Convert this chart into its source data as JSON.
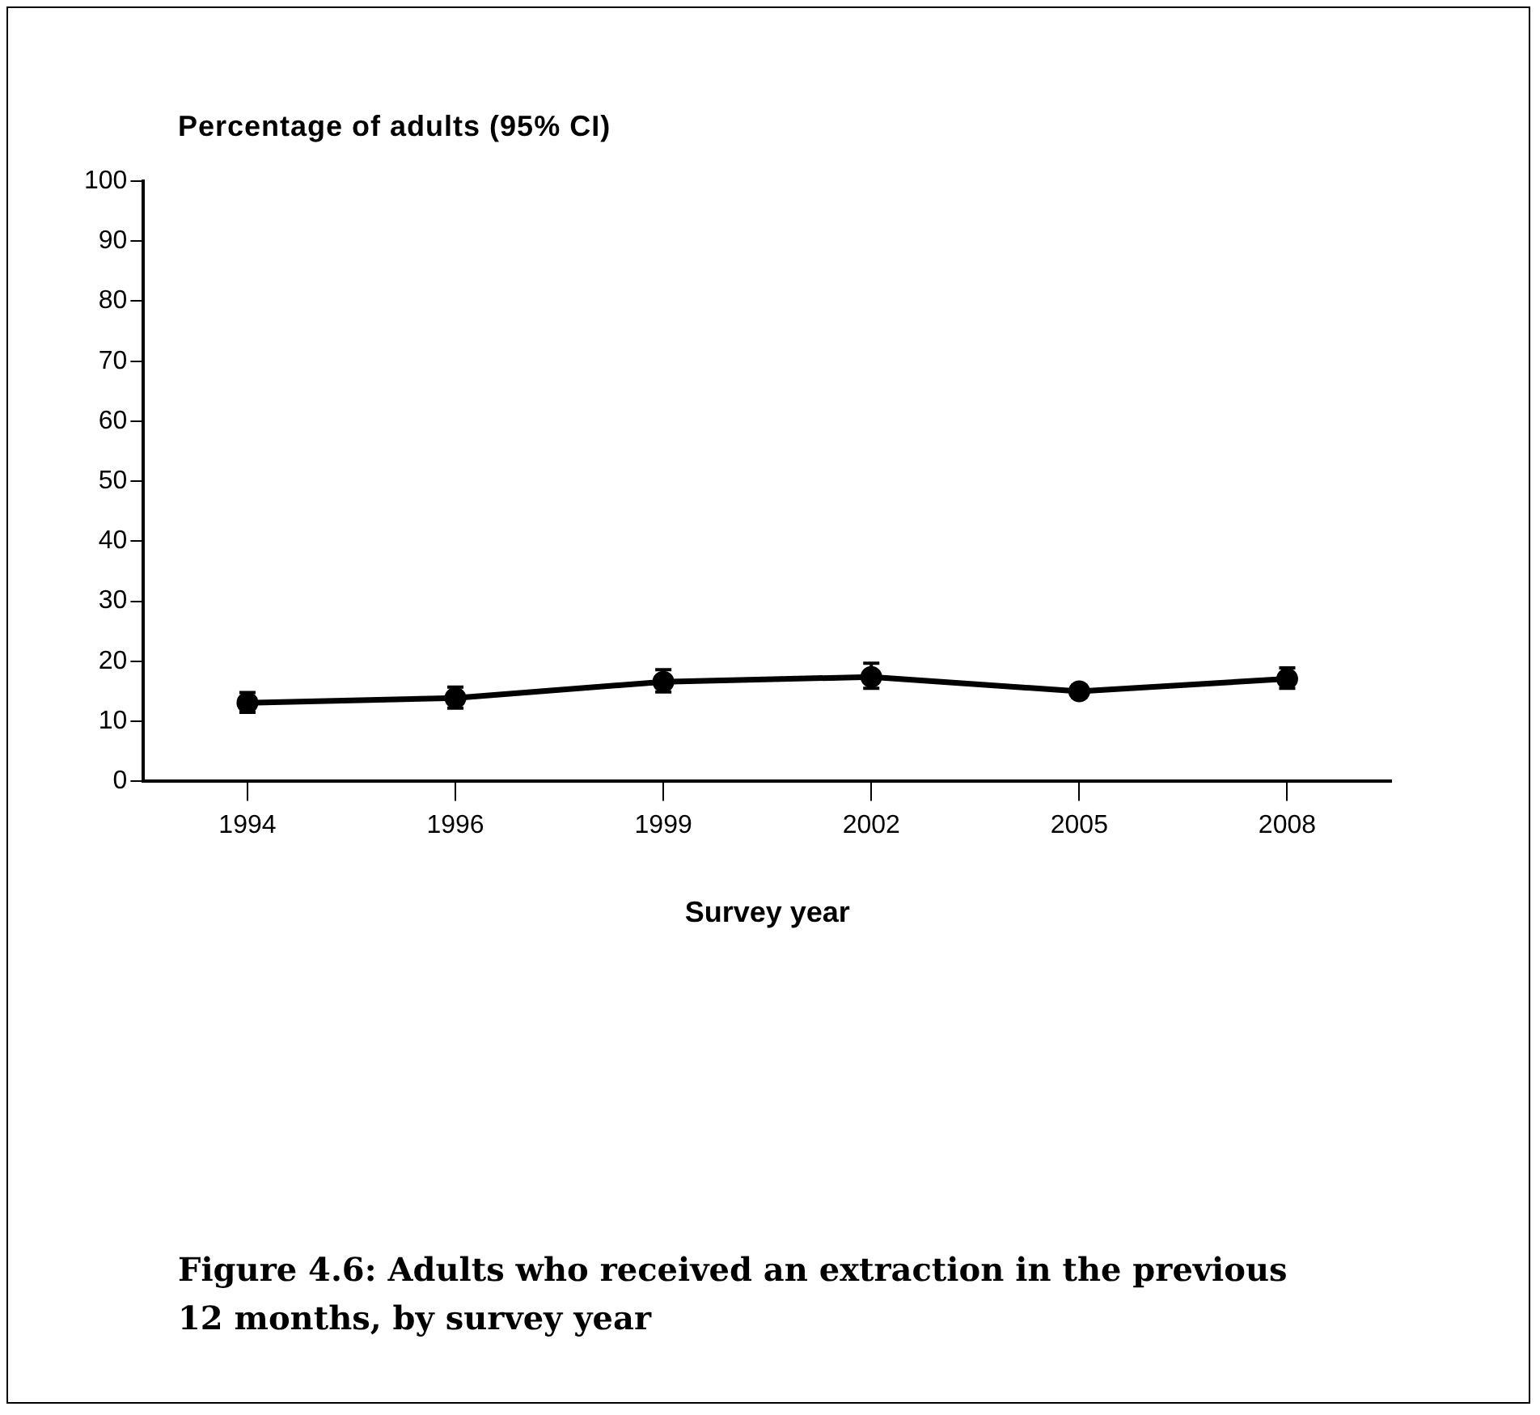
{
  "chart_data": {
    "type": "line",
    "title": "Figure 4.6: Adults who received an extraction in the previous 12 months, by survey year",
    "xlabel": "Survey year",
    "ylabel": "Percentage of adults (95% CI)",
    "categories": [
      "1994",
      "1996",
      "1999",
      "2002",
      "2005",
      "2008"
    ],
    "series": [
      {
        "color": "#000000",
        "values": [
          13.1,
          13.9,
          16.6,
          17.4,
          15.0,
          17.1
        ],
        "errors": [
          [
            11.5,
            14.8
          ],
          [
            12.2,
            15.7
          ],
          [
            14.9,
            18.6
          ],
          [
            15.5,
            19.7
          ],
          [
            14.0,
            16.0
          ],
          [
            15.5,
            18.9
          ]
        ]
      }
    ],
    "ylim": [
      0,
      100
    ],
    "yticks": [
      0,
      10,
      20,
      30,
      40,
      50,
      60,
      70,
      80,
      90,
      100
    ],
    "grid": false,
    "legend": false,
    "marker": "circle",
    "line_style": "solid"
  }
}
